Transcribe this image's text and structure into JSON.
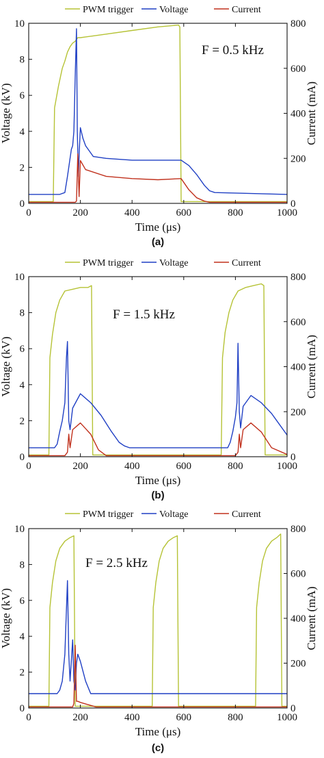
{
  "chart_data": [
    {
      "type": "line",
      "panel_label": "(a)",
      "annotation": "F = 0.5 kHz",
      "xlabel": "Time (μs)",
      "ylabel": "Voltage (kV)",
      "y2label": "Current (mA)",
      "xlim": [
        0,
        1000
      ],
      "ylim": [
        0,
        10
      ],
      "y2lim": [
        0,
        800
      ],
      "xticks": [
        0,
        200,
        400,
        600,
        800,
        1000
      ],
      "yticks": [
        0,
        2,
        4,
        6,
        8,
        10
      ],
      "y2ticks": [
        0,
        200,
        400,
        600,
        800
      ],
      "legend_position": "top",
      "series": [
        {
          "name": "PWM trigger",
          "color": "#b5c234",
          "axis": "left",
          "x": [
            0,
            95,
            100,
            115,
            130,
            140,
            150,
            160,
            170,
            180,
            190,
            200,
            250,
            300,
            400,
            500,
            580,
            585,
            590,
            595,
            1000
          ],
          "y": [
            0.1,
            0.1,
            5.3,
            6.5,
            7.5,
            7.9,
            8.4,
            8.7,
            8.9,
            9.0,
            9.2,
            9.2,
            9.3,
            9.4,
            9.6,
            9.8,
            9.9,
            9.8,
            0.1,
            0.1,
            0.1
          ]
        },
        {
          "name": "Voltage",
          "color": "#1f3fc4",
          "axis": "left",
          "x": [
            0,
            110,
            120,
            140,
            150,
            160,
            165,
            170,
            175,
            180,
            185,
            188,
            192,
            196,
            200,
            210,
            220,
            250,
            300,
            400,
            500,
            590,
            620,
            650,
            680,
            700,
            720,
            1000
          ],
          "y": [
            0.5,
            0.5,
            0.5,
            0.6,
            1.5,
            2.5,
            3.0,
            3.2,
            4.0,
            7.0,
            9.7,
            4.0,
            1.5,
            3.0,
            4.2,
            3.6,
            3.2,
            2.6,
            2.5,
            2.4,
            2.4,
            2.4,
            2.1,
            1.6,
            1.0,
            0.7,
            0.6,
            0.5
          ]
        },
        {
          "name": "Current",
          "color": "#c0301c",
          "axis": "right",
          "x": [
            0,
            180,
            185,
            190,
            195,
            200,
            220,
            300,
            400,
            500,
            590,
            620,
            650,
            680,
            700,
            1000
          ],
          "y": [
            5,
            5,
            10,
            220,
            30,
            190,
            150,
            120,
            110,
            105,
            110,
            60,
            25,
            10,
            5,
            5
          ]
        }
      ]
    },
    {
      "type": "line",
      "panel_label": "(b)",
      "annotation": "F = 1.5 kHz",
      "xlabel": "Time (μs)",
      "ylabel": "Voltage (kV)",
      "y2label": "Current (mA)",
      "xlim": [
        0,
        1000
      ],
      "ylim": [
        0,
        10
      ],
      "y2lim": [
        0,
        800
      ],
      "xticks": [
        0,
        200,
        400,
        600,
        800,
        1000
      ],
      "yticks": [
        0,
        2,
        4,
        6,
        8,
        10
      ],
      "y2ticks": [
        0,
        200,
        400,
        600,
        800
      ],
      "legend_position": "top",
      "series": [
        {
          "name": "PWM trigger",
          "color": "#b5c234",
          "axis": "left",
          "x": [
            0,
            78,
            82,
            92,
            105,
            120,
            140,
            170,
            200,
            230,
            243,
            248,
            745,
            750,
            760,
            775,
            790,
            810,
            840,
            870,
            900,
            910,
            915,
            1000
          ],
          "y": [
            0.1,
            0.1,
            5.5,
            6.8,
            8.0,
            8.7,
            9.2,
            9.3,
            9.4,
            9.4,
            9.5,
            0.1,
            0.1,
            5.5,
            6.9,
            8.0,
            8.7,
            9.2,
            9.4,
            9.5,
            9.6,
            9.5,
            0.1,
            0.1
          ]
        },
        {
          "name": "Voltage",
          "color": "#1f3fc4",
          "axis": "left",
          "x": [
            0,
            100,
            110,
            120,
            130,
            140,
            146,
            150,
            155,
            160,
            170,
            200,
            240,
            280,
            320,
            350,
            370,
            390,
            760,
            770,
            780,
            790,
            800,
            806,
            810,
            815,
            820,
            830,
            860,
            900,
            940,
            970,
            1000
          ],
          "y": [
            0.5,
            0.5,
            0.7,
            1.4,
            2.0,
            3.0,
            5.5,
            6.4,
            2.0,
            1.5,
            2.7,
            3.5,
            3.0,
            2.3,
            1.4,
            0.8,
            0.6,
            0.5,
            0.5,
            0.5,
            0.8,
            1.4,
            2.2,
            3.0,
            6.3,
            2.5,
            1.6,
            2.8,
            3.4,
            3.0,
            2.4,
            1.8,
            1.2
          ]
        },
        {
          "name": "Current",
          "color": "#c0301c",
          "axis": "right",
          "x": [
            0,
            140,
            150,
            155,
            160,
            170,
            200,
            240,
            270,
            300,
            800,
            810,
            815,
            820,
            830,
            860,
            900,
            940,
            1000
          ],
          "y": [
            5,
            5,
            20,
            100,
            40,
            120,
            150,
            100,
            30,
            5,
            5,
            20,
            100,
            40,
            120,
            150,
            110,
            40,
            10
          ]
        }
      ]
    },
    {
      "type": "line",
      "panel_label": "(c)",
      "annotation": "F = 2.5 kHz",
      "xlabel": "Time (μs)",
      "ylabel": "Voltage (kV)",
      "y2label": "Current (mA)",
      "xlim": [
        0,
        1000
      ],
      "ylim": [
        0,
        10
      ],
      "y2lim": [
        0,
        800
      ],
      "xticks": [
        0,
        200,
        400,
        600,
        800,
        1000
      ],
      "yticks": [
        0,
        2,
        4,
        6,
        8,
        10
      ],
      "y2ticks": [
        0,
        200,
        400,
        600,
        800
      ],
      "legend_position": "top",
      "series": [
        {
          "name": "PWM trigger",
          "color": "#b5c234",
          "axis": "left",
          "x": [
            0,
            78,
            82,
            92,
            105,
            120,
            140,
            160,
            175,
            180,
            478,
            482,
            492,
            505,
            520,
            540,
            560,
            575,
            580,
            878,
            882,
            892,
            905,
            920,
            940,
            960,
            975,
            980,
            1000
          ],
          "y": [
            0.1,
            0.1,
            5.6,
            7.0,
            8.2,
            8.9,
            9.3,
            9.5,
            9.6,
            0.1,
            0.1,
            5.6,
            7.0,
            8.2,
            8.9,
            9.3,
            9.5,
            9.6,
            0.1,
            0.1,
            5.6,
            7.0,
            8.2,
            8.9,
            9.3,
            9.5,
            9.7,
            0.1,
            0.1
          ]
        },
        {
          "name": "Voltage",
          "color": "#1f3fc4",
          "axis": "left",
          "x": [
            0,
            110,
            120,
            130,
            140,
            146,
            150,
            155,
            160,
            170,
            175,
            180,
            185,
            190,
            200,
            220,
            240,
            1000
          ],
          "y": [
            0.8,
            0.8,
            1.0,
            1.5,
            3.0,
            5.5,
            7.1,
            3.0,
            1.5,
            3.8,
            1.5,
            1.0,
            2.5,
            3.0,
            2.6,
            1.5,
            0.8,
            0.8
          ]
        },
        {
          "name": "Current",
          "color": "#c0301c",
          "axis": "right",
          "x": [
            0,
            170,
            175,
            180,
            185,
            190,
            200,
            230,
            260,
            1000
          ],
          "y": [
            5,
            5,
            20,
            280,
            30,
            30,
            25,
            15,
            5,
            5
          ]
        }
      ]
    }
  ]
}
